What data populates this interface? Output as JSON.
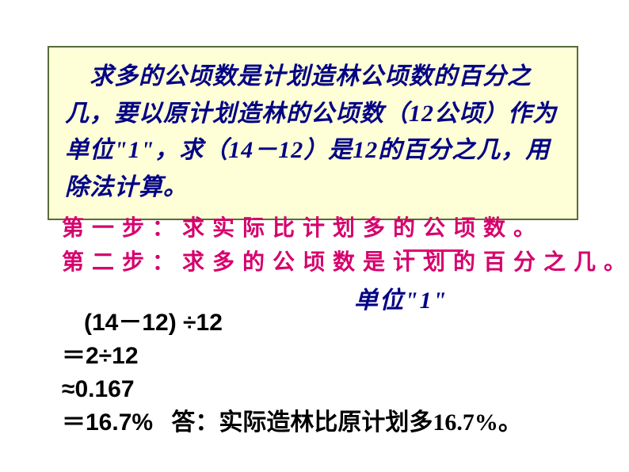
{
  "box": {
    "background": "#feffd6",
    "border_color": "#5a6b3a",
    "text_color": "#030385",
    "text": "　求多的公顷数是计划造林公顷数的百分之几，要以原计划造林的公顷数（12公顷）作为单位\"1\"，求（14－12）是12的百分之几，用除法计算。"
  },
  "steps": {
    "color": "#d6006c",
    "step1": "第一步：求实际比计划多的公顷数。",
    "step2": "第二步：求多的公顷数是计划的百分之几。"
  },
  "unit_label": "单位\"1\"",
  "calculation": {
    "line1": "(14－12) ÷12",
    "line2": "＝2÷12",
    "line3": "≈0.167",
    "line4_result": "＝16.7%",
    "answer": "答：实际造林比原计划多16.7%。"
  },
  "values": {
    "planned": 12,
    "actual": 14,
    "difference": 2,
    "decimal": 0.167,
    "percent": "16.7%"
  }
}
